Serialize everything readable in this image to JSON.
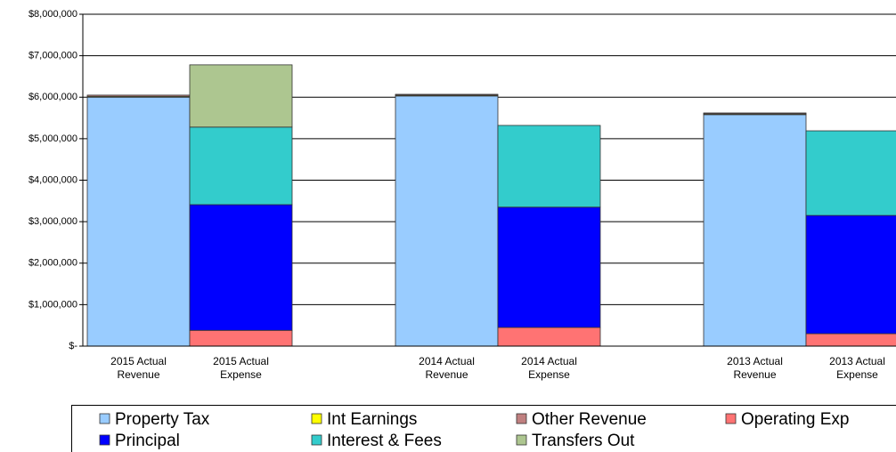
{
  "chart_data": {
    "type": "stacked_bar",
    "categories": [
      "2015 Actual Revenue",
      "2015 Actual Expense",
      "2014 Actual Revenue",
      "2014 Actual Expense",
      "2013 Actual Revenue",
      "2013 Actual Expense"
    ],
    "series": [
      {
        "name": "Property Tax",
        "color": "#99ccff",
        "values": [
          6000000,
          null,
          6030000,
          null,
          5580000,
          null
        ]
      },
      {
        "name": "Int Earnings",
        "color": "#ffff00",
        "values": [
          20000,
          null,
          20000,
          null,
          20000,
          null
        ]
      },
      {
        "name": "Other Revenue",
        "color": "#c08080",
        "values": [
          30000,
          null,
          20000,
          null,
          20000,
          null
        ]
      },
      {
        "name": "Operating Exp",
        "color": "#ff7373",
        "values": [
          null,
          380000,
          null,
          450000,
          null,
          300000
        ]
      },
      {
        "name": "Principal",
        "color": "#0000ff",
        "values": [
          null,
          3030000,
          null,
          2900000,
          null,
          2850000
        ]
      },
      {
        "name": "Interest & Fees",
        "color": "#33cccc",
        "values": [
          null,
          1870000,
          null,
          1970000,
          null,
          2040000
        ]
      },
      {
        "name": "Transfers Out",
        "color": "#adc690",
        "values": [
          null,
          1500000,
          null,
          null,
          null,
          null
        ]
      }
    ],
    "ylim": [
      0,
      8000000
    ],
    "yticks": [
      {
        "value": 0,
        "label": "$-"
      },
      {
        "value": 1000000,
        "label": "$1,000,000"
      },
      {
        "value": 2000000,
        "label": "$2,000,000"
      },
      {
        "value": 3000000,
        "label": "$3,000,000"
      },
      {
        "value": 4000000,
        "label": "$4,000,000"
      },
      {
        "value": 5000000,
        "label": "$5,000,000"
      },
      {
        "value": 6000000,
        "label": "$6,000,000"
      },
      {
        "value": 7000000,
        "label": "$7,000,000"
      },
      {
        "value": 8000000,
        "label": "$8,000,000"
      }
    ],
    "grid": true,
    "legend": "bottom"
  }
}
